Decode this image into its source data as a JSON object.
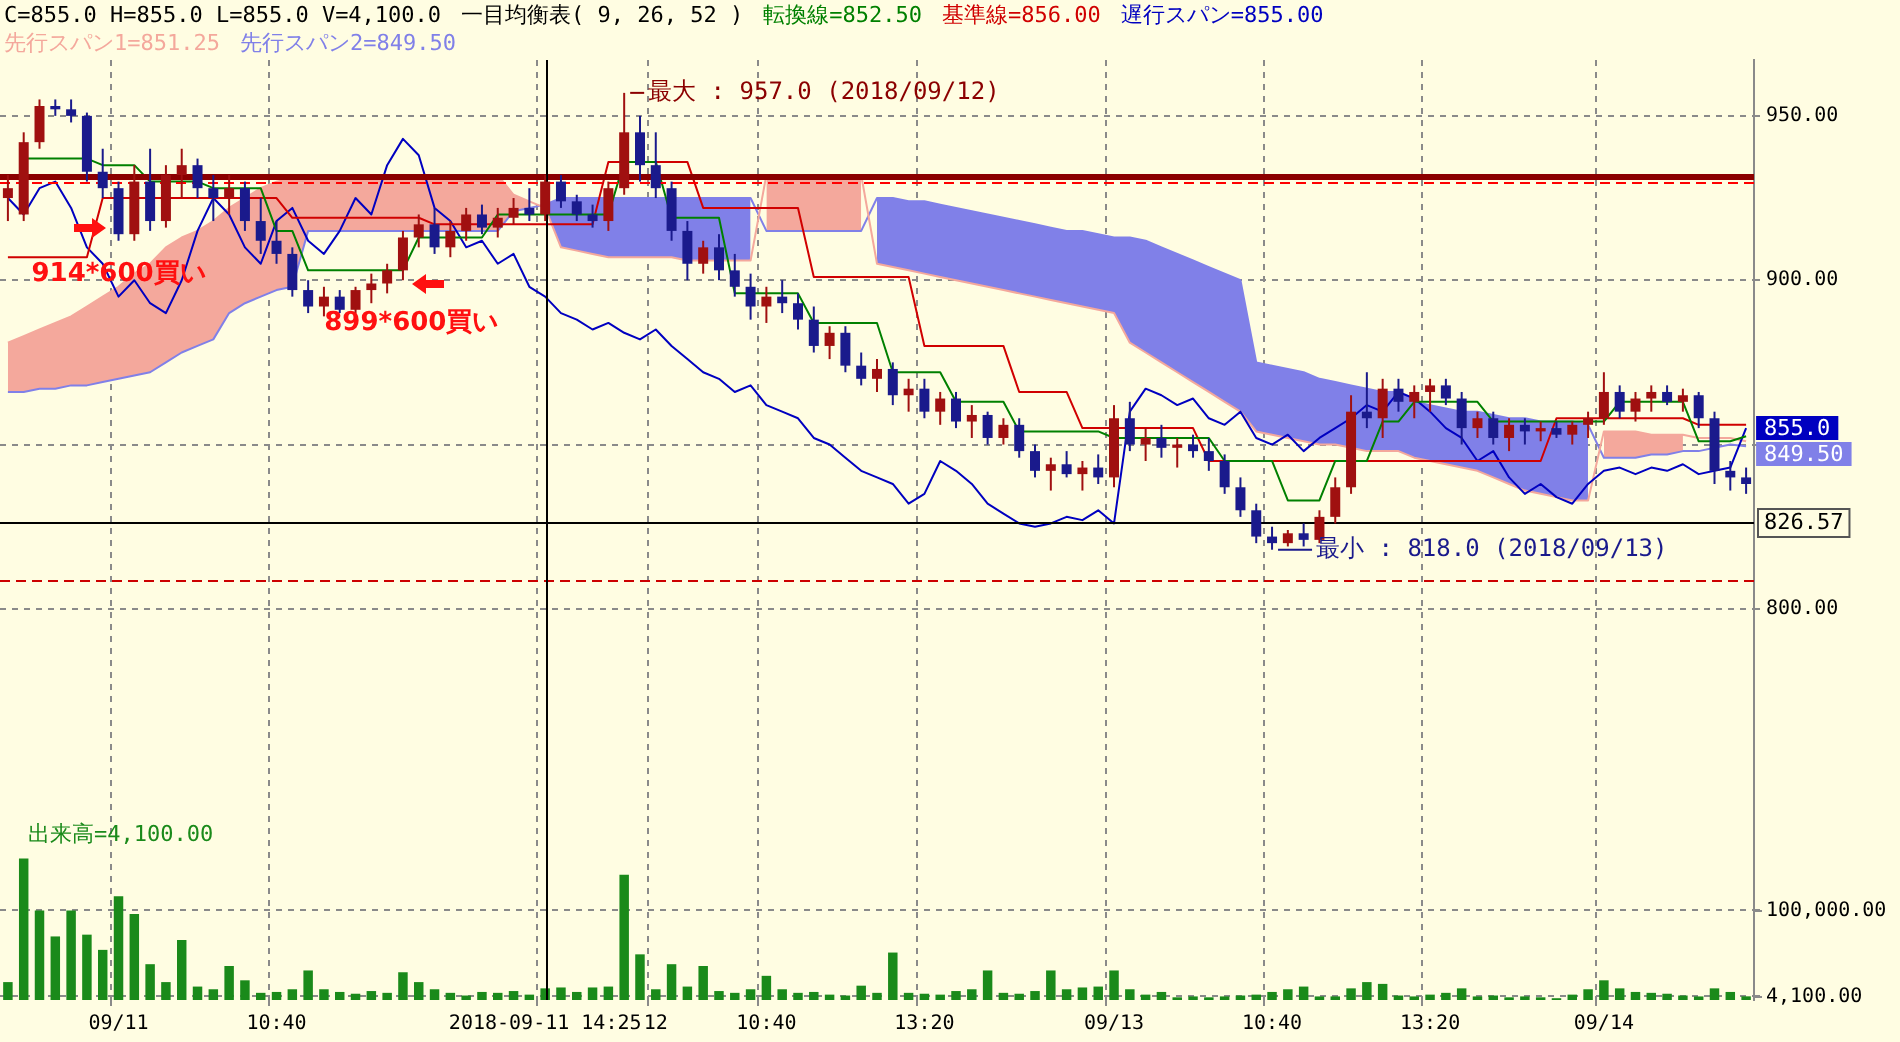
{
  "chart_data": {
    "type": "candlestick",
    "title": "一目均衡表( 9, 26, 52 )",
    "subtitle": "C=855.0 H=855.0 L=855.0 V=4,100.0",
    "legend": "top left",
    "grid": true,
    "categories": [
      null,
      null,
      null,
      null,
      null,
      null,
      null,
      "09/11",
      null,
      null,
      null,
      null,
      null,
      null,
      null,
      null,
      null,
      "10:40",
      null,
      null,
      null,
      null,
      null,
      null,
      null,
      null,
      null,
      null,
      null,
      null,
      null,
      null,
      null,
      null,
      "2018-09-11 14:25",
      null,
      null,
      null,
      null,
      null,
      null,
      "12",
      null,
      null,
      null,
      null,
      null,
      null,
      "10:40",
      null,
      null,
      null,
      null,
      null,
      null,
      null,
      null,
      null,
      "13:20",
      null,
      null,
      null,
      null,
      null,
      null,
      null,
      null,
      null,
      null,
      null,
      "09/13",
      null,
      null,
      null,
      null,
      null,
      null,
      null,
      null,
      null,
      "10:40",
      null,
      null,
      null,
      null,
      null,
      null,
      null,
      null,
      null,
      "13:20",
      null,
      null,
      null,
      null,
      null,
      null,
      null,
      null,
      null,
      null,
      "09/14",
      null,
      null,
      null,
      null,
      null,
      null,
      null,
      null,
      null
    ],
    "ohlc": [
      [
        925,
        932,
        918,
        928
      ],
      [
        920,
        945,
        918,
        942
      ],
      [
        942,
        955,
        940,
        953
      ],
      [
        953,
        955,
        950,
        952
      ],
      [
        952,
        955,
        948,
        950
      ],
      [
        950,
        951,
        930,
        933
      ],
      [
        933,
        940,
        925,
        928
      ],
      [
        928,
        930,
        912,
        914
      ],
      [
        914,
        935,
        912,
        930
      ],
      [
        930,
        940,
        915,
        918
      ],
      [
        918,
        935,
        916,
        932
      ],
      [
        932,
        940,
        925,
        935
      ],
      [
        935,
        937,
        925,
        928
      ],
      [
        928,
        932,
        918,
        925
      ],
      [
        925,
        932,
        920,
        928
      ],
      [
        928,
        930,
        915,
        918
      ],
      [
        918,
        925,
        908,
        912
      ],
      [
        912,
        918,
        905,
        908
      ],
      [
        908,
        910,
        895,
        897
      ],
      [
        897,
        900,
        890,
        892
      ],
      [
        892,
        898,
        889,
        895
      ],
      [
        895,
        897,
        890,
        891
      ],
      [
        891,
        898,
        890,
        897
      ],
      [
        897,
        902,
        893,
        899
      ],
      [
        899,
        905,
        896,
        903
      ],
      [
        903,
        915,
        900,
        913
      ],
      [
        913,
        920,
        910,
        917
      ],
      [
        917,
        922,
        908,
        910
      ],
      [
        910,
        918,
        907,
        915
      ],
      [
        915,
        922,
        912,
        920
      ],
      [
        920,
        923,
        914,
        916
      ],
      [
        916,
        922,
        913,
        919
      ],
      [
        919,
        925,
        917,
        922
      ],
      [
        922,
        928,
        918,
        920
      ],
      [
        920,
        932,
        918,
        930
      ],
      [
        930,
        932,
        922,
        924
      ],
      [
        924,
        926,
        918,
        920
      ],
      [
        920,
        923,
        916,
        918
      ],
      [
        918,
        930,
        915,
        928
      ],
      [
        928,
        957,
        926,
        945
      ],
      [
        945,
        950,
        930,
        935
      ],
      [
        935,
        945,
        925,
        928
      ],
      [
        928,
        930,
        912,
        915
      ],
      [
        915,
        918,
        900,
        905
      ],
      [
        905,
        912,
        902,
        910
      ],
      [
        910,
        914,
        900,
        903
      ],
      [
        903,
        908,
        895,
        898
      ],
      [
        898,
        902,
        888,
        892
      ],
      [
        892,
        898,
        887,
        895
      ],
      [
        895,
        900,
        890,
        893
      ],
      [
        893,
        896,
        885,
        888
      ],
      [
        888,
        892,
        878,
        880
      ],
      [
        880,
        886,
        876,
        884
      ],
      [
        884,
        886,
        872,
        874
      ],
      [
        874,
        878,
        868,
        870
      ],
      [
        870,
        876,
        866,
        873
      ],
      [
        873,
        875,
        862,
        865
      ],
      [
        865,
        870,
        860,
        867
      ],
      [
        867,
        870,
        858,
        860
      ],
      [
        860,
        866,
        856,
        864
      ],
      [
        864,
        866,
        855,
        857
      ],
      [
        857,
        862,
        852,
        859
      ],
      [
        859,
        860,
        850,
        852
      ],
      [
        852,
        858,
        850,
        856
      ],
      [
        856,
        858,
        846,
        848
      ],
      [
        848,
        850,
        840,
        842
      ],
      [
        842,
        846,
        836,
        844
      ],
      [
        844,
        848,
        840,
        841
      ],
      [
        841,
        845,
        836,
        843
      ],
      [
        843,
        847,
        838,
        840
      ],
      [
        840,
        862,
        837,
        858
      ],
      [
        858,
        863,
        848,
        850
      ],
      [
        850,
        855,
        845,
        852
      ],
      [
        852,
        856,
        846,
        849
      ],
      [
        849,
        852,
        843,
        850
      ],
      [
        850,
        853,
        846,
        848
      ],
      [
        848,
        852,
        842,
        845
      ],
      [
        845,
        847,
        835,
        837
      ],
      [
        837,
        840,
        828,
        830
      ],
      [
        830,
        832,
        820,
        822
      ],
      [
        822,
        825,
        818,
        820
      ],
      [
        820,
        824,
        819,
        823
      ],
      [
        823,
        826,
        819,
        821
      ],
      [
        821,
        830,
        820,
        828
      ],
      [
        828,
        840,
        826,
        837
      ],
      [
        837,
        865,
        835,
        860
      ],
      [
        860,
        872,
        855,
        858
      ],
      [
        858,
        870,
        852,
        867
      ],
      [
        867,
        870,
        860,
        863
      ],
      [
        863,
        868,
        858,
        866
      ],
      [
        866,
        870,
        860,
        868
      ],
      [
        868,
        870,
        862,
        864
      ],
      [
        864,
        866,
        850,
        855
      ],
      [
        855,
        860,
        852,
        858
      ],
      [
        858,
        860,
        850,
        852
      ],
      [
        852,
        858,
        848,
        856
      ],
      [
        856,
        858,
        850,
        854
      ],
      [
        854,
        857,
        851,
        855
      ],
      [
        855,
        857,
        852,
        853
      ],
      [
        853,
        857,
        850,
        856
      ],
      [
        856,
        860,
        852,
        858
      ],
      [
        858,
        872,
        856,
        866
      ],
      [
        866,
        868,
        858,
        860
      ],
      [
        860,
        866,
        857,
        864
      ],
      [
        864,
        868,
        860,
        866
      ],
      [
        866,
        868,
        862,
        863
      ],
      [
        863,
        867,
        860,
        865
      ],
      [
        865,
        866,
        855,
        858
      ],
      [
        858,
        860,
        838,
        842
      ],
      [
        842,
        845,
        836,
        840
      ],
      [
        840,
        843,
        835,
        838
      ]
    ],
    "colors": [
      "#a01010",
      "#a01010",
      "#a01010",
      "#1a1a8c",
      "#1a1a8c",
      "#1a1a8c",
      "#1a1a8c",
      "#1a1a8c",
      "#a01010",
      "#1a1a8c",
      "#a01010",
      "#a01010",
      "#1a1a8c",
      "#1a1a8c",
      "#a01010",
      "#1a1a8c",
      "#1a1a8c",
      "#1a1a8c",
      "#1a1a8c",
      "#1a1a8c",
      "#a01010",
      "#1a1a8c",
      "#a01010",
      "#a01010",
      "#a01010",
      "#a01010",
      "#a01010",
      "#1a1a8c",
      "#a01010",
      "#a01010",
      "#1a1a8c",
      "#a01010",
      "#a01010",
      "#1a1a8c",
      "#a01010",
      "#1a1a8c",
      "#1a1a8c",
      "#1a1a8c",
      "#a01010",
      "#a01010",
      "#1a1a8c",
      "#1a1a8c",
      "#1a1a8c",
      "#1a1a8c",
      "#a01010",
      "#1a1a8c",
      "#1a1a8c",
      "#1a1a8c",
      "#a01010",
      "#1a1a8c",
      "#1a1a8c",
      "#1a1a8c",
      "#a01010",
      "#1a1a8c",
      "#1a1a8c",
      "#a01010",
      "#1a1a8c",
      "#a01010",
      "#1a1a8c",
      "#a01010",
      "#1a1a8c",
      "#a01010",
      "#1a1a8c",
      "#a01010",
      "#1a1a8c",
      "#1a1a8c",
      "#a01010",
      "#1a1a8c",
      "#a01010",
      "#1a1a8c",
      "#a01010",
      "#1a1a8c",
      "#a01010",
      "#1a1a8c",
      "#a01010",
      "#1a1a8c",
      "#1a1a8c",
      "#1a1a8c",
      "#1a1a8c",
      "#1a1a8c",
      "#1a1a8c",
      "#a01010",
      "#1a1a8c",
      "#a01010",
      "#a01010",
      "#a01010",
      "#1a1a8c",
      "#a01010",
      "#1a1a8c",
      "#a01010",
      "#a01010",
      "#1a1a8c",
      "#1a1a8c",
      "#a01010",
      "#1a1a8c",
      "#a01010",
      "#1a1a8c",
      "#a01010",
      "#1a1a8c",
      "#a01010",
      "#a01010",
      "#a01010",
      "#1a1a8c",
      "#a01010",
      "#a01010",
      "#1a1a8c",
      "#a01010",
      "#1a1a8c",
      "#1a1a8c",
      "#1a1a8c",
      "#1a1a8c"
    ],
    "series": [
      {
        "type": "line",
        "name": "転換線=852.50",
        "color": "#008000",
        "values": [
          null,
          937,
          937,
          937,
          937,
          937,
          935,
          935,
          935,
          930,
          930,
          930,
          930,
          928,
          928,
          928,
          928,
          915,
          915,
          903,
          903,
          903,
          903,
          903,
          903,
          903,
          913,
          913,
          913,
          913,
          913,
          920,
          920,
          920,
          920,
          920,
          920,
          920,
          920,
          936,
          936,
          936,
          919,
          919,
          919,
          919,
          896,
          896,
          896,
          896,
          896,
          887,
          887,
          887,
          887,
          887,
          872,
          872,
          872,
          872,
          863,
          863,
          863,
          863,
          854,
          854,
          854,
          854,
          854,
          854,
          852,
          852,
          852,
          852,
          852,
          852,
          852,
          845,
          845,
          845,
          845,
          833,
          833,
          833,
          845,
          845,
          845,
          857,
          857,
          863,
          863,
          863,
          863,
          863,
          857,
          857,
          857,
          857,
          857,
          857,
          857,
          857,
          863,
          863,
          863,
          863,
          863,
          851,
          851,
          851,
          852.5
        ]
      },
      {
        "type": "line",
        "name": "基準線=856.00",
        "color": "#d00000",
        "values": [
          907,
          907,
          907,
          907,
          907,
          907,
          925,
          925,
          925,
          925,
          925,
          925,
          925,
          925,
          925,
          925,
          925,
          925,
          919,
          919,
          919,
          919,
          919,
          919,
          919,
          919,
          919,
          917,
          917,
          917,
          917,
          917,
          917,
          917,
          917,
          917,
          917,
          917,
          936,
          936,
          null,
          936,
          936,
          936,
          922,
          922,
          922,
          922,
          922,
          922,
          922,
          901,
          901,
          901,
          901,
          901,
          901,
          901,
          880,
          880,
          880,
          880,
          880,
          880,
          866,
          866,
          866,
          866,
          855,
          855,
          855,
          855,
          855,
          855,
          855,
          855,
          845,
          845,
          845,
          845,
          845,
          845,
          845,
          845,
          845,
          null,
          845,
          845,
          845,
          845,
          845,
          845,
          845,
          845,
          845,
          845,
          845,
          845,
          858,
          858,
          858,
          858,
          858,
          858,
          858,
          858,
          858,
          856,
          856,
          856,
          856
        ]
      },
      {
        "type": "line",
        "name": "遅行スパン=855.00",
        "color": "#0000c0",
        "values": [
          925,
          920,
          928,
          930,
          922,
          910,
          905,
          895,
          900,
          893,
          890,
          900,
          915,
          925,
          920,
          910,
          905,
          918,
          922,
          912,
          908,
          915,
          925,
          920,
          935,
          943,
          938,
          922,
          918,
          910,
          912,
          905,
          908,
          898,
          895,
          890,
          888,
          885,
          887,
          884,
          882,
          885,
          880,
          876,
          872,
          870,
          866,
          868,
          862,
          860,
          858,
          852,
          850,
          846,
          842,
          840,
          838,
          832,
          835,
          845,
          842,
          838,
          832,
          829,
          826,
          825,
          826,
          828,
          827,
          830,
          826,
          860,
          867,
          865,
          862,
          864,
          858,
          856,
          860,
          852,
          850,
          853,
          848,
          852,
          855,
          858,
          862,
          860,
          866,
          864,
          860,
          855,
          852,
          845,
          848,
          840,
          835,
          838,
          834,
          832,
          838,
          842,
          843,
          841,
          843,
          842,
          844,
          841,
          842,
          843,
          855
        ],
        "value_labels": [
          null,
          null,
          null,
          null,
          null,
          null,
          null,
          null,
          null,
          null,
          null,
          null,
          null,
          null,
          null,
          null,
          null,
          null,
          null,
          null,
          null,
          null,
          null,
          null,
          null,
          null,
          null,
          null,
          null,
          null,
          null,
          null,
          null,
          null,
          null,
          null,
          null,
          null,
          null,
          null,
          null,
          null,
          null,
          null,
          null,
          null,
          null,
          null,
          null,
          null,
          null,
          null,
          null,
          null,
          null,
          null,
          null,
          null,
          null,
          null,
          null,
          null,
          null,
          null,
          null,
          null,
          null,
          null,
          null,
          null,
          null,
          null,
          null,
          null,
          null,
          null,
          null,
          null,
          null,
          null,
          null,
          null,
          null,
          null,
          null,
          null,
          null,
          null,
          null,
          null,
          null,
          null,
          null,
          null,
          null,
          null,
          null,
          null,
          null,
          null,
          null,
          null,
          null,
          null,
          null,
          null,
          null,
          null,
          null,
          null,
          "855.0"
        ]
      },
      {
        "type": "line",
        "name": "先行スパン1=851.25",
        "color": "#f4a89c",
        "values": [
          881,
          883,
          885,
          887,
          889,
          892,
          895,
          898,
          902,
          905,
          910,
          913,
          915,
          918,
          922,
          925,
          928,
          930,
          931,
          932,
          932,
          932,
          932,
          932,
          932,
          932,
          932,
          932,
          932,
          932,
          932,
          932,
          926,
          924,
          922,
          910,
          909,
          908,
          907,
          907,
          907,
          907,
          907,
          906,
          906,
          906,
          906,
          906,
          932,
          932,
          932,
          932,
          932,
          932,
          932,
          905,
          904,
          903,
          902,
          901,
          900,
          899,
          898,
          897,
          896,
          895,
          894,
          893,
          892,
          891,
          890,
          881,
          878,
          875,
          872,
          869,
          866,
          863,
          860,
          854,
          853,
          852,
          851,
          850,
          850,
          849,
          848,
          848,
          848,
          846,
          845,
          844,
          843,
          842,
          840,
          838,
          836,
          835,
          834,
          833,
          833,
          854,
          854,
          854,
          853,
          853,
          853,
          852,
          852,
          852,
          851
        ],
        "upper": [
          881,
          883,
          885,
          887,
          889,
          892,
          895,
          898,
          902,
          905,
          910,
          913,
          915,
          918,
          922,
          925,
          928,
          930,
          931,
          932,
          932,
          932,
          932,
          932,
          932,
          932,
          932,
          932,
          932,
          932,
          932,
          932,
          926,
          924,
          null,
          null,
          null,
          null,
          null,
          null,
          null,
          null,
          null,
          null,
          null,
          null,
          null,
          null,
          932,
          932,
          932,
          932,
          932,
          932,
          932,
          null,
          null,
          null,
          null,
          null,
          null,
          null,
          null,
          null,
          null,
          null,
          null,
          null,
          null,
          null,
          null,
          null,
          null,
          null,
          null,
          null,
          null,
          null,
          null,
          null,
          null,
          null,
          null,
          null,
          null,
          null,
          null,
          null,
          null,
          null,
          null,
          null,
          null,
          null,
          null,
          null,
          null,
          null,
          null,
          null,
          null,
          854,
          854,
          854,
          853,
          853,
          853,
          null,
          null,
          null,
          null
        ],
        "lower": [
          866,
          866,
          867,
          867,
          868,
          868,
          869,
          870,
          871,
          872,
          875,
          878,
          880,
          882,
          890,
          893,
          895,
          897,
          898,
          915,
          915,
          915,
          915,
          915,
          915,
          915,
          915,
          915,
          915,
          915,
          915,
          915,
          921,
          922,
          null,
          null,
          null,
          null,
          null,
          null,
          null,
          null,
          null,
          null,
          null,
          null,
          null,
          null,
          915,
          915,
          915,
          915,
          915,
          915,
          915,
          null,
          null,
          null,
          null,
          null,
          null,
          null,
          null,
          null,
          null,
          null,
          null,
          null,
          null,
          null,
          null,
          null,
          null,
          null,
          null,
          null,
          null,
          null,
          null,
          null,
          null,
          null,
          null,
          null,
          null,
          null,
          null,
          null,
          null,
          null,
          null,
          null,
          null,
          null,
          null,
          null,
          null,
          null,
          null,
          null,
          null,
          846,
          846,
          846,
          847,
          847,
          848,
          null,
          null,
          null,
          null
        ]
      },
      {
        "type": "line",
        "name": "先行スパン2=849.50",
        "color": "#8080e8",
        "values": [
          866,
          866,
          867,
          867,
          868,
          868,
          869,
          870,
          871,
          872,
          875,
          878,
          880,
          882,
          890,
          893,
          895,
          897,
          898,
          915,
          915,
          915,
          915,
          915,
          915,
          915,
          915,
          915,
          915,
          915,
          915,
          915,
          921,
          922,
          923,
          925,
          925,
          925,
          925,
          925,
          925,
          925,
          925,
          925,
          925,
          925,
          925,
          925,
          915,
          915,
          915,
          915,
          915,
          915,
          915,
          925,
          925,
          924,
          924,
          923,
          922,
          921,
          920,
          919,
          918,
          917,
          916,
          915,
          915,
          914,
          913,
          913,
          912,
          910,
          908,
          906,
          904,
          902,
          900,
          875,
          874,
          873,
          872,
          870,
          869,
          868,
          867,
          866,
          866,
          863,
          862,
          861,
          860,
          860,
          859,
          858,
          858,
          857,
          857,
          857,
          856,
          846,
          846,
          846,
          847,
          847,
          848,
          848,
          849,
          850,
          849.5
        ],
        "upper": [
          null,
          null,
          null,
          null,
          null,
          null,
          null,
          null,
          null,
          null,
          null,
          null,
          null,
          null,
          null,
          null,
          null,
          null,
          null,
          null,
          null,
          null,
          null,
          null,
          null,
          null,
          null,
          null,
          null,
          null,
          null,
          null,
          null,
          null,
          923,
          925,
          925,
          925,
          925,
          925,
          925,
          925,
          925,
          925,
          925,
          925,
          925,
          925,
          null,
          null,
          null,
          null,
          null,
          null,
          null,
          925,
          925,
          924,
          924,
          923,
          922,
          921,
          920,
          919,
          918,
          917,
          916,
          915,
          915,
          914,
          913,
          913,
          912,
          910,
          908,
          906,
          904,
          902,
          900,
          875,
          874,
          873,
          872,
          870,
          869,
          868,
          867,
          866,
          866,
          863,
          862,
          861,
          860,
          860,
          859,
          858,
          858,
          857,
          857,
          857,
          856,
          null,
          null,
          null,
          null,
          null,
          null,
          null,
          null,
          null,
          null
        ],
        "lower": [
          null,
          null,
          null,
          null,
          null,
          null,
          null,
          null,
          null,
          null,
          null,
          null,
          null,
          null,
          null,
          null,
          null,
          null,
          null,
          null,
          null,
          null,
          null,
          null,
          null,
          null,
          null,
          null,
          null,
          null,
          null,
          null,
          null,
          null,
          922,
          910,
          909,
          908,
          907,
          907,
          907,
          907,
          907,
          906,
          906,
          906,
          906,
          906,
          null,
          null,
          null,
          null,
          null,
          null,
          null,
          905,
          904,
          903,
          902,
          901,
          900,
          899,
          898,
          897,
          896,
          895,
          894,
          893,
          892,
          891,
          890,
          881,
          878,
          875,
          872,
          869,
          866,
          863,
          860,
          854,
          853,
          852,
          851,
          850,
          850,
          849,
          848,
          848,
          848,
          846,
          845,
          844,
          843,
          842,
          840,
          838,
          836,
          835,
          834,
          833,
          833,
          null,
          null,
          null,
          null,
          null,
          null,
          null,
          null,
          null,
          null
        ],
        "value_labels": [
          null,
          null,
          null,
          null,
          null,
          null,
          null,
          null,
          null,
          null,
          null,
          null,
          null,
          null,
          null,
          null,
          null,
          null,
          null,
          null,
          null,
          null,
          null,
          null,
          null,
          null,
          null,
          null,
          null,
          null,
          null,
          null,
          null,
          null,
          null,
          null,
          null,
          null,
          null,
          null,
          null,
          null,
          null,
          null,
          null,
          null,
          null,
          null,
          null,
          null,
          null,
          null,
          null,
          null,
          null,
          null,
          null,
          null,
          null,
          null,
          null,
          null,
          null,
          null,
          null,
          null,
          null,
          null,
          null,
          null,
          null,
          null,
          null,
          null,
          null,
          null,
          null,
          null,
          null,
          null,
          null,
          null,
          null,
          null,
          null,
          null,
          null,
          null,
          null,
          null,
          null,
          null,
          null,
          null,
          null,
          null,
          null,
          null,
          null,
          null,
          null,
          null,
          null,
          null,
          null,
          null,
          null,
          null,
          null,
          null,
          "849.50"
        ]
      },
      {
        "type": "bar",
        "name": "出来高=4,100.00",
        "axis": "y2",
        "color": "#1a8a1a",
        "values": [
          20000,
          158000,
          100000,
          71000,
          100000,
          73000,
          56000,
          116000,
          96000,
          40000,
          20000,
          67000,
          15000,
          12000,
          38000,
          22000,
          8000,
          9000,
          12000,
          33000,
          12000,
          9000,
          7000,
          10000,
          8000,
          31000,
          20000,
          12000,
          8000,
          5000,
          9000,
          8000,
          10000,
          6000,
          13000,
          14000,
          9000,
          14000,
          15000,
          140000,
          51000,
          12000,
          40000,
          15000,
          38000,
          10000,
          8000,
          12000,
          27000,
          12000,
          8000,
          9000,
          6000,
          5000,
          16000,
          8000,
          53000,
          8000,
          7000,
          6000,
          10000,
          12000,
          33000,
          8000,
          7000,
          10000,
          33000,
          12000,
          14000,
          15000,
          33000,
          12000,
          6000,
          9000,
          3000,
          4000,
          3000,
          4000,
          5000,
          6000,
          9000,
          12000,
          15000,
          4000,
          4000,
          13000,
          20000,
          18000,
          5000,
          4000,
          6000,
          8000,
          13000,
          4000,
          5000,
          3000,
          4000,
          3000,
          2000,
          6000,
          12000,
          22000,
          13000,
          9000,
          8000,
          7000,
          5000,
          4000,
          13000,
          9000,
          4100
        ]
      }
    ],
    "ylim": [
      681,
      967
    ],
    "yticks": [
      {
        "value": 950,
        "label": "950.00"
      },
      {
        "value": 900,
        "label": "900.00"
      },
      {
        "value": 850,
        "label": null
      },
      {
        "value": 800,
        "label": "800.00"
      }
    ],
    "y2lim": [
      0,
      1050000
    ],
    "y2ticks": [
      {
        "value": 100000,
        "label": "100,000.00"
      },
      {
        "value": 4100,
        "label": "4,100.00"
      }
    ],
    "ref_lines": [
      {
        "axis": "y",
        "value": 932,
        "color": "#8b0000"
      },
      {
        "axis": "y",
        "value": 930,
        "color": "#ff0000",
        "line_style": "dashed"
      },
      {
        "axis": "y",
        "value": 809,
        "color": "#cc0000",
        "line_style": "dashed"
      },
      {
        "axis": "y",
        "value": 826.57,
        "label": "826.57",
        "color": "#000000"
      },
      {
        "axis": "x",
        "value": "2018-09-11 14:25",
        "color": "#000000"
      }
    ],
    "annotations": [
      "最大 : 957.0 (2018/09/12)",
      "最小 : 818.0 (2018/09/13)",
      {
        "text": "914*600買い",
        "y": 914
      },
      {
        "text": "899*600買い",
        "y": 899
      }
    ]
  }
}
